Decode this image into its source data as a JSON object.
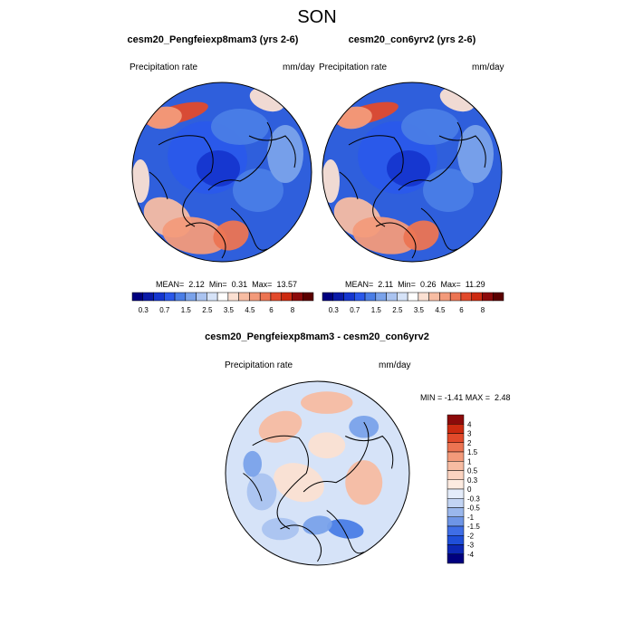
{
  "season": "SON",
  "palette": {
    "diverging": [
      "#00007f",
      "#0a1aa8",
      "#1536cf",
      "#2a58ea",
      "#4a7de6",
      "#7aa2ea",
      "#aac3f0",
      "#d6e3f8",
      "#fbe0d2",
      "#f7bca2",
      "#f39a7a",
      "#ec7452",
      "#e24a2b",
      "#cc2a10",
      "#8c0a0a"
    ],
    "ocean_base": "#2f5fdc",
    "coast": "#000000"
  },
  "panels": [
    {
      "title": "cesm20_Pengfeiexp8mam3 (yrs 2-6)",
      "variable": "Precipitation rate",
      "units": "mm/day",
      "stats": {
        "mean_label": "MEAN=",
        "mean": "2.12",
        "min_label": "Min=",
        "min": "0.31",
        "max_label": "Max=",
        "max": "13.57"
      },
      "colorbar_ticks": [
        "0.3",
        "0.7",
        "1.5",
        "2.5",
        "3.5",
        "4.5",
        "6",
        "8"
      ]
    },
    {
      "title": "cesm20_con6yrv2 (yrs 2-6)",
      "variable": "Precipitation rate",
      "units": "mm/day",
      "stats": {
        "mean_label": "MEAN=",
        "mean": "2.11",
        "min_label": "Min=",
        "min": "0.26",
        "max_label": "Max=",
        "max": "11.29"
      },
      "colorbar_ticks": [
        "0.3",
        "0.7",
        "1.5",
        "2.5",
        "3.5",
        "4.5",
        "6",
        "8"
      ]
    }
  ],
  "difference": {
    "title": "cesm20_Pengfeiexp8mam3 - cesm20_con6yrv2",
    "variable": "Precipitation rate",
    "units": "mm/day",
    "minmax": "MIN = -1.41 MAX =  2.48",
    "colorbar_ticks": [
      "4",
      "3",
      "2",
      "1.5",
      "1",
      "0.5",
      "0.3",
      "0",
      "-0.3",
      "-0.5",
      "-1",
      "-1.5",
      "-2",
      "-3",
      "-4"
    ]
  }
}
